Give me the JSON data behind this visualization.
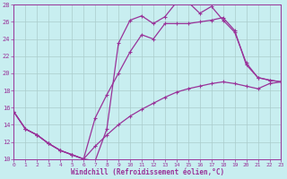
{
  "xlabel": "Windchill (Refroidissement éolien,°C)",
  "bg_color": "#c8eef0",
  "line_color": "#993399",
  "grid_color": "#aacccc",
  "xmin": 0,
  "xmax": 23,
  "ymin": 10,
  "ymax": 28,
  "yticks": [
    10,
    12,
    14,
    16,
    18,
    20,
    22,
    24,
    26,
    28
  ],
  "xticks": [
    0,
    1,
    2,
    3,
    4,
    5,
    6,
    7,
    8,
    9,
    10,
    11,
    12,
    13,
    14,
    15,
    16,
    17,
    18,
    19,
    20,
    21,
    22,
    23
  ],
  "line1_x": [
    0,
    1,
    2,
    3,
    4,
    5,
    6,
    7,
    8,
    9,
    10,
    11,
    12,
    13,
    14,
    15,
    16,
    17,
    18,
    19,
    20,
    21,
    22,
    23
  ],
  "line1_y": [
    15.5,
    13.5,
    12.8,
    11.8,
    11.0,
    10.5,
    10.0,
    9.8,
    13.5,
    23.5,
    26.2,
    26.7,
    25.8,
    26.6,
    28.3,
    28.3,
    27.0,
    27.8,
    26.2,
    24.8,
    21.2,
    19.5,
    19.2,
    19.0
  ],
  "line2_x": [
    0,
    1,
    2,
    3,
    4,
    5,
    6,
    7,
    8,
    9,
    10,
    11,
    12,
    13,
    14,
    15,
    16,
    17,
    18,
    19,
    20,
    21,
    22,
    23
  ],
  "line2_y": [
    15.5,
    13.5,
    12.8,
    11.8,
    11.0,
    10.5,
    10.0,
    14.8,
    17.5,
    20.0,
    22.5,
    24.5,
    24.0,
    25.8,
    25.8,
    25.8,
    26.0,
    26.2,
    26.5,
    25.0,
    21.0,
    19.5,
    19.2,
    19.0
  ],
  "line3_x": [
    0,
    1,
    2,
    3,
    4,
    5,
    6,
    7,
    8,
    9,
    10,
    11,
    12,
    13,
    14,
    15,
    16,
    17,
    18,
    19,
    20,
    21,
    22,
    23
  ],
  "line3_y": [
    15.5,
    13.5,
    12.8,
    11.8,
    11.0,
    10.5,
    10.0,
    11.5,
    12.8,
    14.0,
    15.0,
    15.8,
    16.5,
    17.2,
    17.8,
    18.2,
    18.5,
    18.8,
    19.0,
    18.8,
    18.5,
    18.2,
    18.8,
    19.0
  ]
}
